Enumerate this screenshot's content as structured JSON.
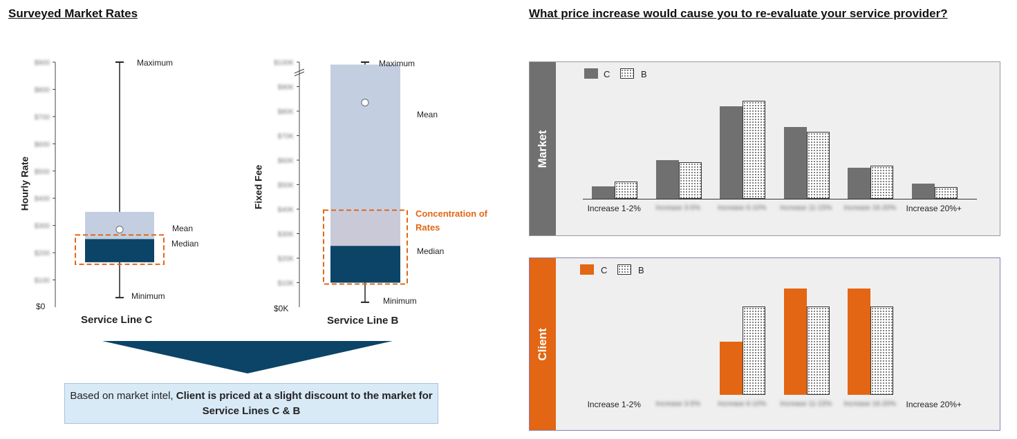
{
  "left": {
    "title": "Surveyed Market Rates",
    "chart_c": {
      "ylabel": "Hourly Rate",
      "xlabel": "Service Line C",
      "zero_tick": "$0",
      "tick_labels": [
        "$100",
        "$200",
        "$300",
        "$400",
        "$500",
        "$600",
        "$700",
        "$800",
        "$900"
      ],
      "labels": {
        "maximum": "Maximum",
        "mean": "Mean",
        "median": "Median",
        "minimum": "Minimum"
      }
    },
    "chart_b": {
      "ylabel": "Fixed Fee",
      "xlabel": "Service Line B",
      "zero_tick": "$0K",
      "tick_labels": [
        "$10K",
        "$20K",
        "$30K",
        "$40K",
        "$50K",
        "$60K",
        "$70K",
        "$80K",
        "$90K",
        "$100K"
      ],
      "labels": {
        "maximum": "Maximum",
        "mean": "Mean",
        "median": "Median",
        "minimum": "Minimum",
        "concentration": "Concentration of Rates"
      }
    },
    "conclusion": {
      "pre": "Based on market intel, ",
      "bold": "Client is priced at a slight discount to the market for Service Lines C & B"
    }
  },
  "right": {
    "title": "What price increase would cause you to re-evaluate your service provider?",
    "legend": {
      "c": "C",
      "b": "B"
    },
    "market": {
      "tab": "Market"
    },
    "client": {
      "tab": "Client"
    },
    "categories": [
      "Increase 1-2%",
      "Increase 3-5%",
      "Increase 6-10%",
      "Increase 11-15%",
      "Increase 16-20%",
      "Increase 20%+"
    ],
    "blurred_categories": [
      false,
      true,
      true,
      true,
      true,
      false
    ]
  },
  "colors": {
    "market_c": "#707070",
    "client_c": "#e26613",
    "box_light": "#c3cfe1",
    "box_dark": "#0b4466",
    "accent": "#e26613",
    "panel_bg": "#efefef",
    "conclusion_bg": "#d9eaf7",
    "arrow": "#0b4466"
  },
  "chart_data": [
    {
      "type": "box",
      "title": "Service Line C",
      "ylabel": "Hourly Rate",
      "ylim": [
        0,
        900
      ],
      "max": 900,
      "q3": 350,
      "mean": 285,
      "median": 250,
      "q1": 165,
      "min": 35
    },
    {
      "type": "box",
      "title": "Service Line B",
      "ylabel": "Fixed Fee",
      "ylim": [
        0,
        100000
      ],
      "max": 100000,
      "q3": 99000,
      "mean": 83500,
      "median": 25000,
      "q1": 10000,
      "min": 2000,
      "concentration_range": [
        10000,
        39000
      ]
    },
    {
      "type": "bar",
      "title": "Market",
      "categories": [
        "Increase 1-2%",
        "Increase 3-5%",
        "Increase 6-10%",
        "Increase 11-15%",
        "Increase 16-20%",
        "Increase 20%+"
      ],
      "series": [
        {
          "name": "C",
          "values": [
            18,
            56,
            134,
            104,
            45,
            22
          ]
        },
        {
          "name": "B",
          "values": [
            25,
            53,
            142,
            97,
            48,
            17
          ]
        }
      ]
    },
    {
      "type": "bar",
      "title": "Client",
      "categories": [
        "Increase 1-2%",
        "Increase 3-5%",
        "Increase 6-10%",
        "Increase 11-15%",
        "Increase 16-20%",
        "Increase 20%+"
      ],
      "series": [
        {
          "name": "C",
          "values": [
            0,
            0,
            77,
            154,
            154,
            0
          ]
        },
        {
          "name": "B",
          "values": [
            0,
            0,
            128,
            128,
            128,
            0
          ]
        }
      ]
    }
  ]
}
